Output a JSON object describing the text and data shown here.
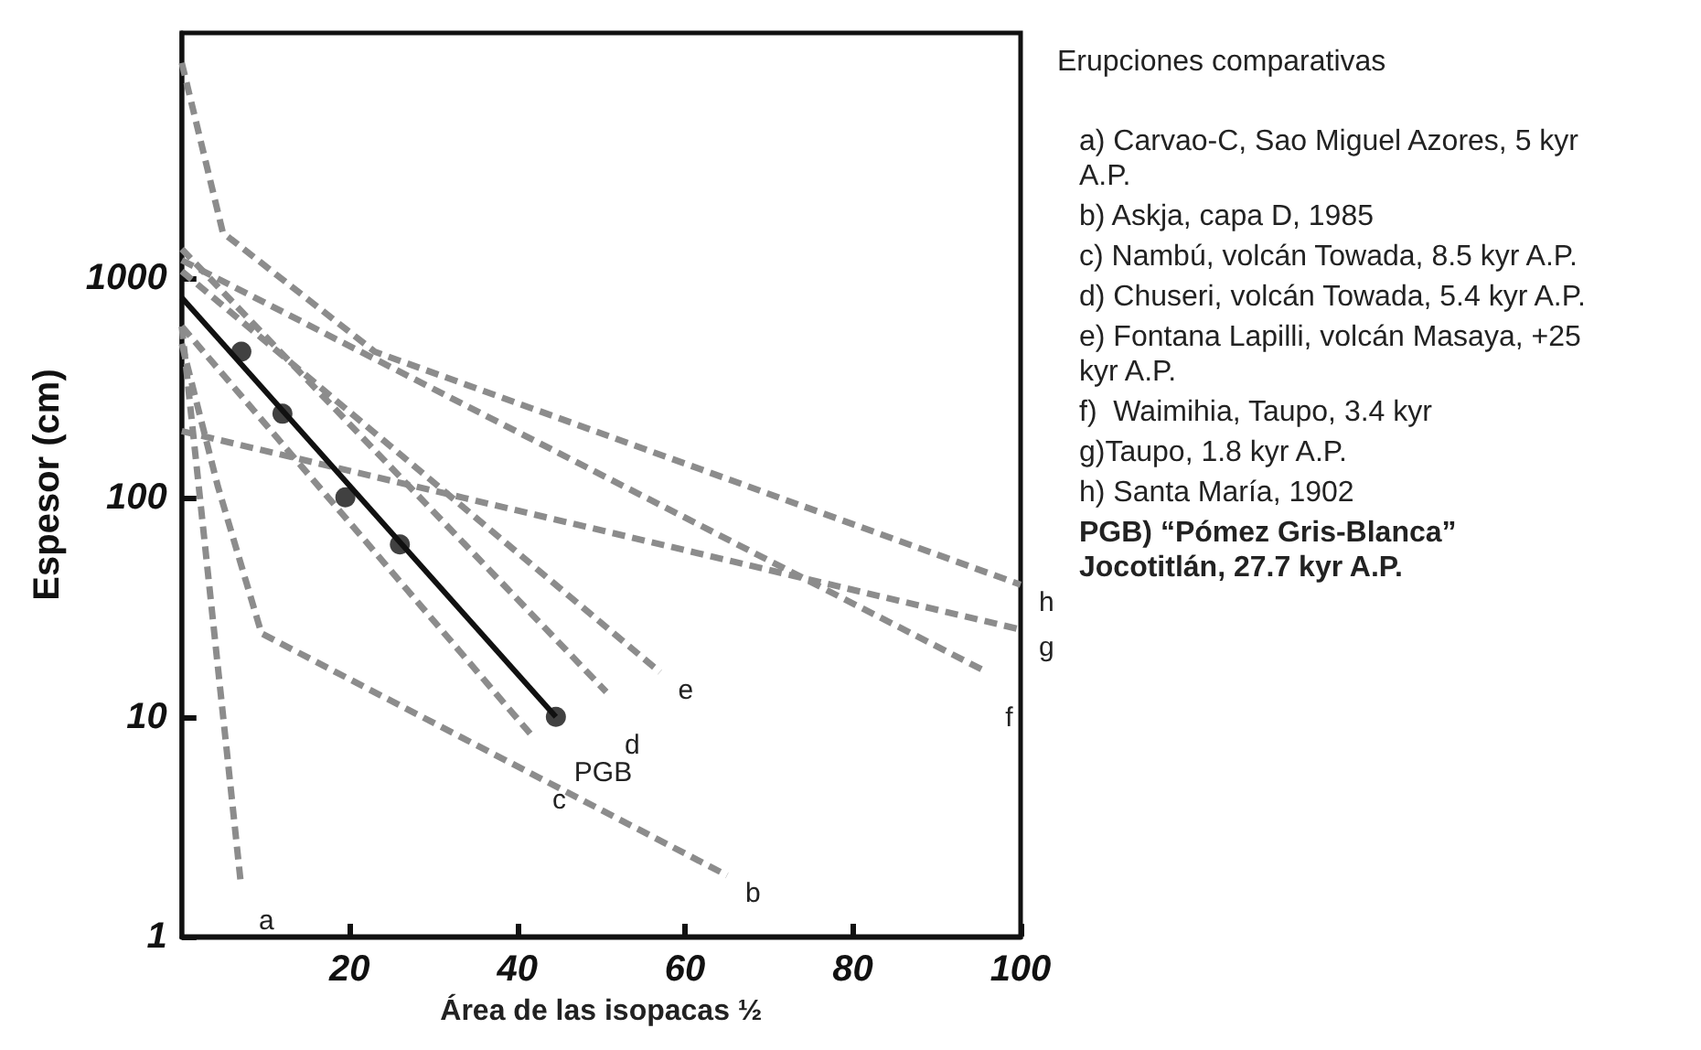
{
  "chart_data": {
    "type": "line",
    "xlabel": "Área de las isopacas ½",
    "ylabel": "Espesor (cm)",
    "legend_title": "Erupciones comparativas",
    "annotations": [
      "a) Carvao-C, Sao Miguel Azores, 5 kyr A.P.",
      "b) Askja, capa D, 1985",
      "c) Nambú, volcán Towada, 8.5 kyr A.P.",
      "d) Chuseri, volcán Towada, 5.4 kyr A.P.",
      "e) Fontana Lapilli, volcán Masaya, +25 kyr A.P.",
      "f)  Waimihia, Taupo, 3.4 kyr",
      "g)Taupo, 1.8 kyr A.P.",
      "h) Santa María, 1902",
      "PGB) “Pómez Gris-Blanca” Jocotitlán, 27.7 kyr A.P."
    ],
    "xlim": [
      0,
      100
    ],
    "xticks": [
      20,
      40,
      60,
      80,
      100
    ],
    "ylim": [
      1,
      13000
    ],
    "yticks": [
      1,
      10,
      100,
      1000
    ],
    "log": "y",
    "grid": false,
    "legend": false,
    "marker": "none",
    "line_style": "dashed",
    "series": [
      {
        "name": "a",
        "color": "#8c8c8c",
        "x": [
          0,
          7
        ],
        "values": [
          600,
          1.8
        ]
      },
      {
        "name": "b",
        "color": "#8c8c8c",
        "x": [
          0,
          4.3,
          9.5,
          65
        ],
        "values": [
          500,
          112,
          24,
          1.9
        ]
      },
      {
        "name": "c",
        "color": "#8c8c8c",
        "x": [
          0,
          42
        ],
        "values": [
          600,
          8
        ]
      },
      {
        "name": "d",
        "color": "#8c8c8c",
        "x": [
          0,
          50.6
        ],
        "values": [
          1350,
          13
        ]
      },
      {
        "name": "e",
        "color": "#8c8c8c",
        "x": [
          0,
          57
        ],
        "values": [
          1070,
          16
        ]
      },
      {
        "name": "f",
        "color": "#8c8c8c",
        "x": [
          0,
          96
        ],
        "values": [
          1200,
          16
        ]
      },
      {
        "name": "g",
        "color": "#8c8c8c",
        "x": [
          0,
          100
        ],
        "values": [
          200,
          25
        ]
      },
      {
        "name": "h",
        "color": "#8c8c8c",
        "x": [
          0,
          4.9,
          23,
          100
        ],
        "values": [
          9500,
          1600,
          460,
          40
        ]
      },
      {
        "name": "PGB",
        "color": "#111111",
        "line_style": "solid",
        "x": [
          0,
          44.6
        ],
        "values": [
          810,
          10
        ]
      },
      {
        "type": "scatter",
        "color": "#111111",
        "marker": "circle",
        "x": [
          7.1,
          12,
          19.5,
          26,
          44.6
        ],
        "values": [
          460,
          240,
          100,
          61,
          10
        ]
      }
    ]
  }
}
